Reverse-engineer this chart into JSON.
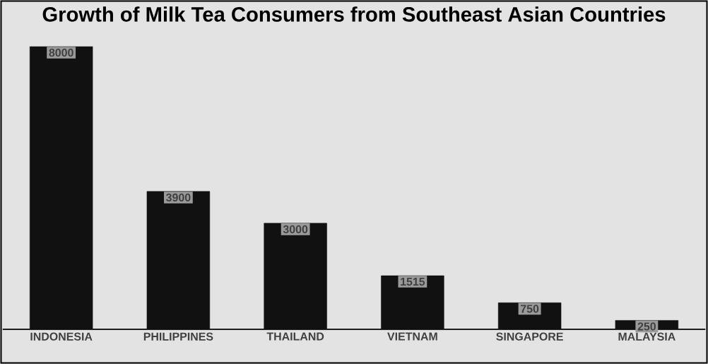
{
  "chart_data": {
    "type": "bar",
    "title": "Growth of Milk Tea Consumers from Southeast Asian Countries",
    "categories": [
      "INDONESIA",
      "PHILIPPINES",
      "THAILAND",
      "VIETNAM",
      "SINGAPORE",
      "MALAYSIA"
    ],
    "values": [
      8000,
      3900,
      3000,
      1515,
      750,
      250
    ],
    "color": "#111111",
    "tick_labels": "x",
    "data_labels": true
  }
}
